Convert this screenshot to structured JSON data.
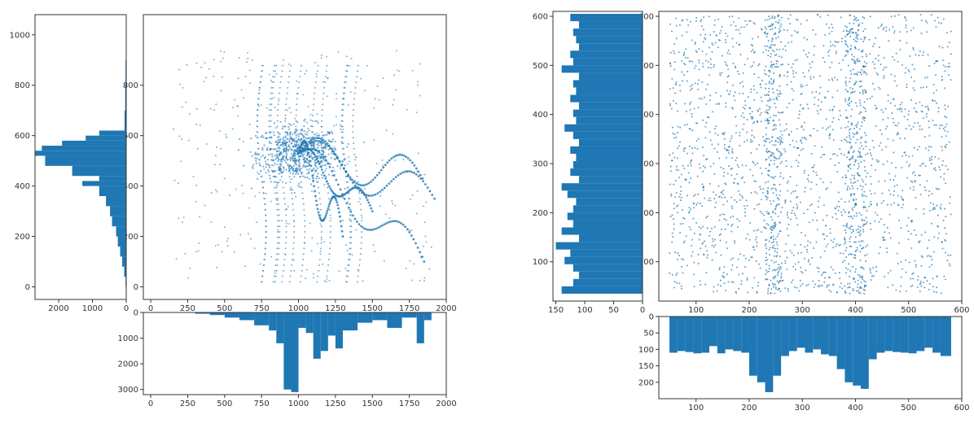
{
  "chart_data": [
    {
      "type": "scatter",
      "panel": "left-main",
      "xlim": [
        -50,
        2000
      ],
      "ylim": [
        -50,
        1080
      ],
      "xticks": [
        0,
        250,
        500,
        750,
        1000,
        1250,
        1500,
        1750,
        2000
      ],
      "yticks": [
        0,
        200,
        400,
        600,
        800
      ],
      "point_color": "#1f77b4",
      "scatter_point_count": 1200,
      "description": "dense overlapping trajectories concentrated around x 800-1200, y 450-600, with many curved tracks extending right to x 1900",
      "cluster_center": [
        1000,
        530
      ],
      "trajectory_ends": [
        [
          1920,
          350
        ],
        [
          1850,
          100
        ],
        [
          1840,
          430
        ],
        [
          1500,
          300
        ],
        [
          1300,
          200
        ]
      ]
    },
    {
      "type": "bar",
      "panel": "left-y-histogram",
      "orientation": "horizontal-inverted",
      "xlim": [
        2700,
        0
      ],
      "ylim": [
        -50,
        1080
      ],
      "xticks": [
        2000,
        1000,
        0
      ],
      "yticks": [
        0,
        200,
        400,
        600,
        800,
        1000
      ],
      "bin_edges": [
        0,
        40,
        80,
        120,
        160,
        200,
        240,
        280,
        320,
        360,
        400,
        420,
        440,
        480,
        520,
        540,
        560,
        580,
        600,
        620,
        700,
        800,
        900,
        1000,
        1080
      ],
      "values": [
        20,
        60,
        120,
        180,
        250,
        300,
        420,
        480,
        600,
        800,
        1300,
        800,
        1600,
        2400,
        2900,
        2500,
        1900,
        1200,
        800,
        50,
        30,
        20,
        10,
        5
      ]
    },
    {
      "type": "bar",
      "panel": "left-x-histogram",
      "orientation": "vertical-inverted",
      "xlim": [
        -50,
        2000
      ],
      "ylim": [
        0,
        3200
      ],
      "xticks": [
        0,
        250,
        500,
        750,
        1000,
        1250,
        1500,
        1750,
        2000
      ],
      "yticks": [
        0,
        1000,
        2000,
        3000
      ],
      "bin_edges": [
        300,
        400,
        500,
        600,
        700,
        800,
        850,
        900,
        950,
        1000,
        1050,
        1100,
        1150,
        1200,
        1250,
        1300,
        1400,
        1500,
        1600,
        1700,
        1800,
        1850,
        1900
      ],
      "values": [
        50,
        100,
        200,
        300,
        500,
        700,
        1200,
        3000,
        3100,
        600,
        800,
        1800,
        1500,
        900,
        1400,
        700,
        400,
        300,
        600,
        200,
        1200,
        300
      ]
    },
    {
      "type": "scatter",
      "panel": "right-main",
      "xlim": [
        30,
        600
      ],
      "ylim": [
        20,
        610
      ],
      "xticks": [
        100,
        200,
        300,
        400,
        500,
        600
      ],
      "yticks": [
        100,
        200,
        300,
        400,
        500,
        600
      ],
      "point_color": "#1f77b4",
      "scatter_point_count": 2500,
      "description": "near-uniform random points with higher-density vertical bands around x 230-260 and x 380-420",
      "bands": [
        [
          230,
          260
        ],
        [
          380,
          420
        ]
      ]
    },
    {
      "type": "bar",
      "panel": "right-y-histogram",
      "orientation": "horizontal-inverted",
      "xlim": [
        155,
        0
      ],
      "ylim": [
        20,
        610
      ],
      "xticks": [
        150,
        100,
        50,
        0
      ],
      "yticks": [
        100,
        200,
        300,
        400,
        500,
        600
      ],
      "bin_edges": [
        35,
        50,
        65,
        80,
        95,
        110,
        125,
        140,
        155,
        170,
        185,
        200,
        215,
        230,
        245,
        260,
        275,
        290,
        305,
        320,
        335,
        350,
        365,
        380,
        395,
        410,
        425,
        440,
        455,
        470,
        485,
        500,
        515,
        530,
        545,
        560,
        575,
        590,
        605
      ],
      "values": [
        140,
        120,
        110,
        120,
        135,
        125,
        150,
        110,
        140,
        120,
        130,
        120,
        115,
        130,
        140,
        110,
        125,
        120,
        115,
        125,
        110,
        120,
        135,
        115,
        120,
        110,
        125,
        115,
        120,
        110,
        140,
        120,
        125,
        110,
        115,
        120,
        110,
        125
      ]
    },
    {
      "type": "bar",
      "panel": "right-x-histogram",
      "orientation": "vertical-inverted",
      "xlim": [
        30,
        600
      ],
      "ylim": [
        0,
        250
      ],
      "xticks": [
        100,
        200,
        300,
        400,
        500,
        600
      ],
      "yticks": [
        0,
        50,
        100,
        150,
        200
      ],
      "bin_edges": [
        50,
        65,
        80,
        95,
        110,
        125,
        140,
        155,
        170,
        185,
        200,
        215,
        230,
        245,
        260,
        275,
        290,
        305,
        320,
        335,
        350,
        365,
        380,
        395,
        410,
        425,
        440,
        455,
        470,
        485,
        500,
        515,
        530,
        545,
        560,
        580
      ],
      "values": [
        110,
        105,
        108,
        112,
        110,
        90,
        112,
        100,
        105,
        110,
        180,
        200,
        230,
        180,
        120,
        105,
        95,
        110,
        100,
        115,
        120,
        160,
        200,
        210,
        220,
        130,
        110,
        105,
        108,
        110,
        112,
        105,
        95,
        110,
        120
      ]
    }
  ]
}
